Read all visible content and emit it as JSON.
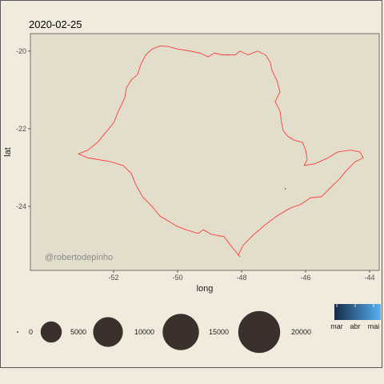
{
  "chart_data": {
    "type": "map",
    "title": "2020-02-25",
    "xlabel": "long",
    "ylabel": "lat",
    "xlim": [
      -54.6,
      -43.7
    ],
    "ylim": [
      -25.65,
      -19.55
    ],
    "x_ticks": [
      -52,
      -50,
      -48,
      -46,
      -44
    ],
    "y_ticks": [
      -20,
      -22,
      -24
    ],
    "grid": false,
    "watermark": "@robertodepinho",
    "outline_color": "#ff2a2a",
    "panel_color": "#e3ddcb",
    "point_color": "#3b302c",
    "points": [
      {
        "long": -46.63,
        "lat": -23.55,
        "value": 1
      }
    ],
    "outline": [
      [
        -53.1,
        -22.65
      ],
      [
        -52.8,
        -22.55
      ],
      [
        -52.5,
        -22.35
      ],
      [
        -52.2,
        -22.05
      ],
      [
        -52.0,
        -21.85
      ],
      [
        -51.85,
        -21.55
      ],
      [
        -51.65,
        -21.2
      ],
      [
        -51.6,
        -20.95
      ],
      [
        -51.45,
        -20.75
      ],
      [
        -51.25,
        -20.6
      ],
      [
        -51.15,
        -20.35
      ],
      [
        -51.0,
        -20.1
      ],
      [
        -50.8,
        -19.95
      ],
      [
        -50.55,
        -19.87
      ],
      [
        -50.3,
        -19.88
      ],
      [
        -50.0,
        -19.95
      ],
      [
        -49.6,
        -20.0
      ],
      [
        -49.3,
        -20.05
      ],
      [
        -49.05,
        -20.15
      ],
      [
        -48.85,
        -20.05
      ],
      [
        -48.6,
        -20.1
      ],
      [
        -48.2,
        -20.1
      ],
      [
        -48.05,
        -20.0
      ],
      [
        -47.8,
        -20.1
      ],
      [
        -47.5,
        -20.0
      ],
      [
        -47.25,
        -20.1
      ],
      [
        -47.1,
        -20.3
      ],
      [
        -47.05,
        -20.5
      ],
      [
        -46.9,
        -20.75
      ],
      [
        -46.8,
        -21.05
      ],
      [
        -46.95,
        -21.3
      ],
      [
        -46.8,
        -21.55
      ],
      [
        -46.75,
        -21.85
      ],
      [
        -46.7,
        -22.05
      ],
      [
        -46.55,
        -22.2
      ],
      [
        -46.35,
        -22.3
      ],
      [
        -46.1,
        -22.35
      ],
      [
        -46.0,
        -22.55
      ],
      [
        -45.95,
        -22.8
      ],
      [
        -46.05,
        -22.95
      ],
      [
        -45.7,
        -22.9
      ],
      [
        -45.3,
        -22.75
      ],
      [
        -45.0,
        -22.6
      ],
      [
        -44.6,
        -22.55
      ],
      [
        -44.3,
        -22.6
      ],
      [
        -44.2,
        -22.75
      ],
      [
        -44.45,
        -22.85
      ],
      [
        -44.75,
        -23.1
      ],
      [
        -44.95,
        -23.3
      ],
      [
        -45.2,
        -23.5
      ],
      [
        -45.5,
        -23.75
      ],
      [
        -45.85,
        -23.78
      ],
      [
        -46.15,
        -23.95
      ],
      [
        -46.5,
        -24.05
      ],
      [
        -46.9,
        -24.25
      ],
      [
        -47.3,
        -24.5
      ],
      [
        -47.65,
        -24.75
      ],
      [
        -47.95,
        -25.0
      ],
      [
        -48.1,
        -25.25
      ],
      [
        -48.05,
        -25.3
      ],
      [
        -48.3,
        -25.05
      ],
      [
        -48.55,
        -24.78
      ],
      [
        -48.95,
        -24.72
      ],
      [
        -49.2,
        -24.6
      ],
      [
        -49.35,
        -24.7
      ],
      [
        -49.75,
        -24.6
      ],
      [
        -50.05,
        -24.5
      ],
      [
        -50.35,
        -24.35
      ],
      [
        -50.55,
        -24.25
      ],
      [
        -50.8,
        -24.0
      ],
      [
        -51.1,
        -23.75
      ],
      [
        -51.3,
        -23.45
      ],
      [
        -51.45,
        -23.15
      ],
      [
        -51.7,
        -22.95
      ],
      [
        -52.1,
        -22.85
      ],
      [
        -52.45,
        -22.8
      ],
      [
        -52.8,
        -22.75
      ],
      [
        -53.1,
        -22.65
      ]
    ],
    "size_legend": {
      "breaks": [
        0,
        5000,
        10000,
        15000,
        20000
      ],
      "labels": [
        "0",
        "5000",
        "10000",
        "15000",
        "20000"
      ]
    },
    "color_legend": {
      "labels": [
        "mar",
        "abr",
        "mai"
      ],
      "colors": [
        "#132b43",
        "#56b1f7"
      ]
    }
  }
}
